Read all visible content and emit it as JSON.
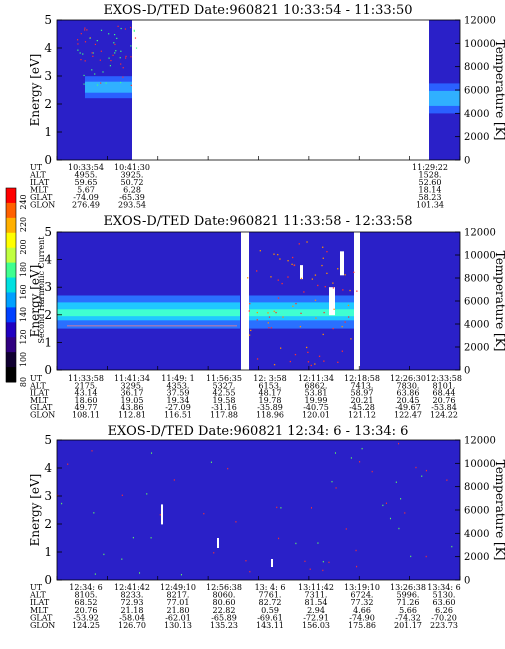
{
  "colorbar": {
    "label": "Second Harmonic Current",
    "ticks": [
      "240",
      "220",
      "200",
      "180",
      "160",
      "140",
      "120",
      "100",
      "80"
    ],
    "colors": [
      "#ff0000",
      "#ff6000",
      "#ffb000",
      "#ffff00",
      "#c0ff40",
      "#40ff90",
      "#00e0e0",
      "#00a0ff",
      "#0040ff",
      "#2000c0",
      "#300080",
      "#100030",
      "#000000"
    ]
  },
  "chart_data": [
    {
      "type": "heatmap",
      "title": "EXOS-D/TED   Date:960821   10:33:54 - 11:33:50",
      "ylabel": "Energy [eV]",
      "ylabel_right": "Temperature [K]",
      "ylim": [
        0,
        5
      ],
      "yticks": [
        "0",
        "1",
        "2",
        "3",
        "4",
        "5"
      ],
      "ylim_right": [
        0,
        12000
      ],
      "yticks_right": [
        "0",
        "2000",
        "4000",
        "6000",
        "8000",
        "10000",
        "12000"
      ],
      "data_intervals": [
        [
          "10:33:54",
          "10:41:30"
        ],
        [
          "11:29:22",
          "11:33:50"
        ]
      ],
      "background_color": "#2a20c8",
      "band_color": "#30b0ff",
      "band_center_eV": [
        [
          0.03,
          2.7
        ],
        [
          0.05,
          2.65
        ],
        [
          0.09,
          2.6
        ],
        [
          0.9,
          2.3
        ],
        [
          0.98,
          2.2
        ]
      ],
      "table": {
        "rows": [
          "UT",
          "ALT",
          "ILAT",
          "MLT",
          "GLAT",
          "GLON"
        ],
        "columns": [
          [
            "10:33:54",
            "4955.",
            "59.65",
            "5.67",
            "-74.09",
            "276.49"
          ],
          [
            "10:41:30",
            "3925.",
            "50.72",
            "6.28",
            "-65.39",
            "293.54"
          ],
          [
            "11:29:22",
            "1528.",
            "52.60",
            "18.14",
            "58.23",
            "101.34"
          ]
        ]
      }
    },
    {
      "type": "heatmap",
      "title": "EXOS-D/TED   Date:960821   11:33:58 - 12:33:58",
      "ylabel": "Energy [eV]",
      "ylabel_right": "Temperature [K]",
      "ylim": [
        0,
        5
      ],
      "yticks": [
        "0",
        "1",
        "2",
        "3",
        "4",
        "5"
      ],
      "ylim_right": [
        0,
        12000
      ],
      "yticks_right": [
        "0",
        "2000",
        "4000",
        "6000",
        "8000",
        "10000",
        "12000"
      ],
      "background_color": "#2a20c8",
      "band_color": "#30d0ff",
      "band_center_eV": [
        [
          0.0,
          2.1
        ],
        [
          0.3,
          2.0
        ],
        [
          0.55,
          2.2
        ],
        [
          0.62,
          2.3
        ],
        [
          0.75,
          2.5
        ],
        [
          0.8,
          2.6
        ]
      ],
      "table": {
        "rows": [
          "UT",
          "ALT",
          "ILAT",
          "MLT",
          "GLAT",
          "GLON"
        ],
        "columns": [
          [
            "11:33:58",
            "2175.",
            "43.14",
            "18.60",
            "49.77",
            "108.11"
          ],
          [
            "11:41:34",
            "3295.",
            "36.17",
            "19.05",
            "43.86",
            "112.81"
          ],
          [
            "11:49: 1",
            "4353.",
            "37.59",
            "19.34",
            "-27.09",
            "116.51"
          ],
          [
            "11:56:35",
            "5327.",
            "42.55",
            "19.58",
            "-31.16",
            "117.88"
          ],
          [
            "12: 3:58",
            "6153.",
            "48.17",
            "19.78",
            "-35.89",
            "118.96"
          ],
          [
            "12:11:34",
            "6862.",
            "53.81",
            "19.99",
            "-40.75",
            "120.01"
          ],
          [
            "12:18:58",
            "7413.",
            "58.97",
            "20.21",
            "-45.28",
            "121.12"
          ],
          [
            "12:26:30",
            "7830.",
            "63.86",
            "20.45",
            "-49.67",
            "122.47"
          ],
          [
            "12:33:58",
            "8101.",
            "68.44",
            "20.76",
            "-53.84",
            "124.22"
          ]
        ]
      }
    },
    {
      "type": "heatmap",
      "title": "EXOS-D/TED   Date:960821   12:34: 6 - 13:34: 6",
      "ylabel": "Energy [eV]",
      "ylabel_right": "Temperature [K]",
      "ylim": [
        0,
        5
      ],
      "yticks": [
        "0",
        "1",
        "2",
        "3",
        "4",
        "5"
      ],
      "ylim_right": [
        0,
        12000
      ],
      "yticks_right": [
        "0",
        "2000",
        "4000",
        "6000",
        "8000",
        "10000",
        "12000"
      ],
      "background_color": "#2a20c8",
      "table": {
        "rows": [
          "UT",
          "ALT",
          "ILAT",
          "MLT",
          "GLAT",
          "GLON"
        ],
        "columns": [
          [
            "12:34: 6",
            "8105.",
            "68.52",
            "20.76",
            "-53.92",
            "124.25"
          ],
          [
            "12:41:42",
            "8233.",
            "72.93",
            "21.18",
            "-58.04",
            "126.70"
          ],
          [
            "12:49:10",
            "8217.",
            "77.01",
            "21.80",
            "-62.01",
            "130.13"
          ],
          [
            "12:56:38",
            "8060.",
            "80.60",
            "22.82",
            "-65.89",
            "135.23"
          ],
          [
            "13: 4: 6",
            "7761.",
            "82.72",
            "0.59",
            "-69.61",
            "143.11"
          ],
          [
            "13:11:42",
            "7311.",
            "81.54",
            "2.94",
            "-72.91",
            "156.03"
          ],
          [
            "13:19:10",
            "6724.",
            "77.32",
            "4.66",
            "-74.90",
            "175.86"
          ],
          [
            "13:26:38",
            "5996.",
            "71.26",
            "5.66",
            "-74.32",
            "201.17"
          ],
          [
            "13:34: 6",
            "5130.",
            "63.60",
            "6.26",
            "-70.20",
            "223.73"
          ]
        ]
      }
    }
  ]
}
